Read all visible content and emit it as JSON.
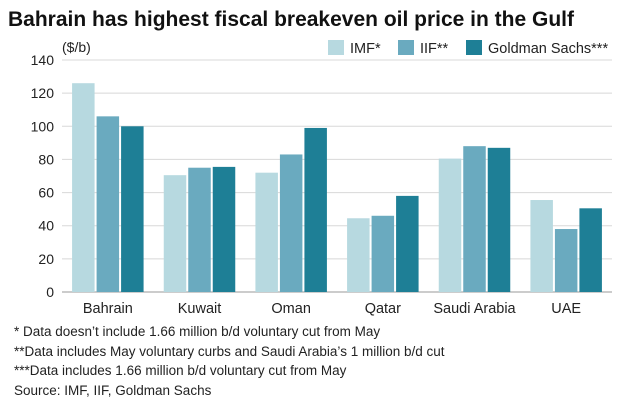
{
  "chart_data": {
    "type": "bar",
    "title": "Bahrain has highest fiscal breakeven oil price in the Gulf",
    "ylabel": "($/b)",
    "xlabel": "",
    "ylim": [
      0,
      140
    ],
    "yticks": [
      0,
      20,
      40,
      60,
      80,
      100,
      120,
      140
    ],
    "grid": true,
    "legend_position": "top-right",
    "categories": [
      "Bahrain",
      "Kuwait",
      "Oman",
      "Qatar",
      "Saudi Arabia",
      "UAE"
    ],
    "series": [
      {
        "name": "IMF*",
        "color": "#b7d9e0",
        "values": [
          126,
          70.5,
          72,
          44.5,
          80.5,
          55.5
        ]
      },
      {
        "name": "IIF**",
        "color": "#6aaabf",
        "values": [
          106,
          75,
          83,
          46,
          88,
          38
        ]
      },
      {
        "name": "Goldman Sachs***",
        "color": "#1e7f96",
        "values": [
          100,
          75.5,
          99,
          58,
          87,
          50.5
        ]
      }
    ]
  },
  "notes": [
    "* Data doesn’t include 1.66 million b/d voluntary cut from May",
    "**Data includes May voluntary curbs and Saudi Arabia’s 1 million b/d cut",
    "***Data includes 1.66 million b/d voluntary cut from May"
  ],
  "source": "Source: IMF, IIF, Goldman Sachs"
}
